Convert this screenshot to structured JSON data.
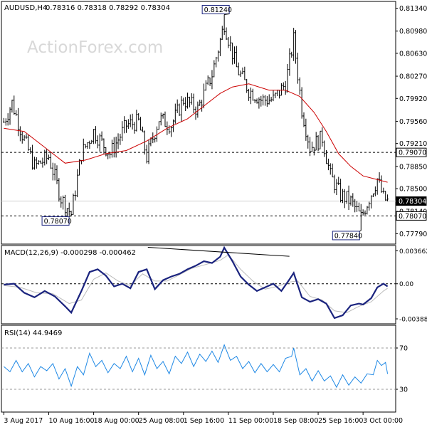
{
  "chart_data": [
    {
      "type": "candlestick",
      "symbol_header": "AUDUSD,H4",
      "ohlc_header": "0.78316 0.78318 0.78292 0.78304",
      "watermark": "ActionForex.com",
      "ylim": [
        0.7766,
        0.8138
      ],
      "y_ticks": [
        "0.81340",
        "0.80980",
        "0.80630",
        "0.80270",
        "0.79920",
        "0.79560",
        "0.79210",
        "0.78850",
        "0.78500",
        "0.78140",
        "0.77790"
      ],
      "price_tags": [
        {
          "label": "0.79070",
          "value": 0.7907,
          "style": "box"
        },
        {
          "label": "0.78304",
          "value": 0.78304,
          "style": "filled"
        },
        {
          "label": "0.78070",
          "value": 0.7807,
          "style": "box"
        }
      ],
      "horizontal_levels": [
        0.7907,
        0.7807
      ],
      "annotations": [
        {
          "label": "0.81240",
          "bar": 108,
          "value": 0.8124,
          "anchor": "above"
        },
        {
          "label": "0.78070",
          "bar": 33,
          "value": 0.7807,
          "anchor": "below"
        },
        {
          "label": "0.77840",
          "bar": 175,
          "value": 0.7784,
          "anchor": "below"
        }
      ],
      "x_labels": [
        {
          "label": "3 Aug 2017",
          "bar": 0
        },
        {
          "label": "10 Aug 16:00",
          "bar": 22
        },
        {
          "label": "18 Aug 00:00",
          "bar": 44
        },
        {
          "label": "25 Aug 08:00",
          "bar": 66
        },
        {
          "label": "1 Sep 16:00",
          "bar": 88
        },
        {
          "label": "11 Sep 00:00",
          "bar": 110
        },
        {
          "label": "18 Sep 08:00",
          "bar": 132
        },
        {
          "label": "25 Sep 16:00",
          "bar": 154
        },
        {
          "label": "3 Oct 00:00",
          "bar": 176
        }
      ],
      "key_points": [
        {
          "bar": 0,
          "value": 0.7955
        },
        {
          "bar": 4,
          "value": 0.7985
        },
        {
          "bar": 9,
          "value": 0.7935
        },
        {
          "bar": 15,
          "value": 0.7885
        },
        {
          "bar": 22,
          "value": 0.79
        },
        {
          "bar": 28,
          "value": 0.7835
        },
        {
          "bar": 33,
          "value": 0.781
        },
        {
          "bar": 38,
          "value": 0.7905
        },
        {
          "bar": 44,
          "value": 0.794
        },
        {
          "bar": 52,
          "value": 0.7905
        },
        {
          "bar": 60,
          "value": 0.795
        },
        {
          "bar": 66,
          "value": 0.7955
        },
        {
          "bar": 70,
          "value": 0.79
        },
        {
          "bar": 76,
          "value": 0.796
        },
        {
          "bar": 82,
          "value": 0.795
        },
        {
          "bar": 88,
          "value": 0.799
        },
        {
          "bar": 95,
          "value": 0.7975
        },
        {
          "bar": 102,
          "value": 0.803
        },
        {
          "bar": 108,
          "value": 0.811
        },
        {
          "bar": 114,
          "value": 0.804
        },
        {
          "bar": 120,
          "value": 0.8005
        },
        {
          "bar": 126,
          "value": 0.799
        },
        {
          "bar": 132,
          "value": 0.799
        },
        {
          "bar": 138,
          "value": 0.8015
        },
        {
          "bar": 142,
          "value": 0.8085
        },
        {
          "bar": 146,
          "value": 0.7975
        },
        {
          "bar": 150,
          "value": 0.7915
        },
        {
          "bar": 156,
          "value": 0.793
        },
        {
          "bar": 160,
          "value": 0.787
        },
        {
          "bar": 165,
          "value": 0.784
        },
        {
          "bar": 170,
          "value": 0.783
        },
        {
          "bar": 175,
          "value": 0.7805
        },
        {
          "bar": 179,
          "value": 0.7835
        },
        {
          "bar": 183,
          "value": 0.7865
        },
        {
          "bar": 186,
          "value": 0.7835
        },
        {
          "bar": 188,
          "value": 0.783
        }
      ],
      "sma_points": [
        {
          "bar": 0,
          "value": 0.7945
        },
        {
          "bar": 10,
          "value": 0.794
        },
        {
          "bar": 20,
          "value": 0.7915
        },
        {
          "bar": 30,
          "value": 0.789
        },
        {
          "bar": 40,
          "value": 0.7895
        },
        {
          "bar": 50,
          "value": 0.7905
        },
        {
          "bar": 60,
          "value": 0.791
        },
        {
          "bar": 70,
          "value": 0.7925
        },
        {
          "bar": 80,
          "value": 0.7945
        },
        {
          "bar": 90,
          "value": 0.796
        },
        {
          "bar": 100,
          "value": 0.7985
        },
        {
          "bar": 106,
          "value": 0.8
        },
        {
          "bar": 112,
          "value": 0.801
        },
        {
          "bar": 120,
          "value": 0.8015
        },
        {
          "bar": 130,
          "value": 0.8005
        },
        {
          "bar": 138,
          "value": 0.8005
        },
        {
          "bar": 145,
          "value": 0.7995
        },
        {
          "bar": 152,
          "value": 0.797
        },
        {
          "bar": 158,
          "value": 0.794
        },
        {
          "bar": 164,
          "value": 0.7905
        },
        {
          "bar": 170,
          "value": 0.7885
        },
        {
          "bar": 176,
          "value": 0.787
        },
        {
          "bar": 182,
          "value": 0.7865
        },
        {
          "bar": 188,
          "value": 0.786
        }
      ],
      "colors": {
        "bar": "#000000",
        "sma": "#cc0000",
        "level": "#000000",
        "annotation_bg": "#ffffff",
        "watermark": "#d8d8d8"
      }
    },
    {
      "type": "line",
      "label": "MACD(12,26,9) -0.000298 -0.000462",
      "ylim": [
        -0.0042,
        0.004
      ],
      "y_ticks": [
        "0.003662",
        "0.00",
        "-0.003887"
      ],
      "y_tick_values": [
        0.003662,
        0.0,
        -0.003887
      ],
      "zero_line": true,
      "series": [
        {
          "role": "macd",
          "color": "#1a237e",
          "points": [
            [
              0,
              -0.0001
            ],
            [
              5,
              0.0
            ],
            [
              10,
              -0.001
            ],
            [
              15,
              -0.0015
            ],
            [
              20,
              -0.0008
            ],
            [
              25,
              -0.0014
            ],
            [
              30,
              -0.0025
            ],
            [
              33,
              -0.0032
            ],
            [
              38,
              -0.0008
            ],
            [
              42,
              0.0013
            ],
            [
              46,
              0.0016
            ],
            [
              50,
              0.0009
            ],
            [
              54,
              -0.0003
            ],
            [
              58,
              0.0
            ],
            [
              62,
              -0.0005
            ],
            [
              66,
              0.0013
            ],
            [
              70,
              0.0016
            ],
            [
              74,
              -0.0006
            ],
            [
              78,
              0.0004
            ],
            [
              82,
              0.0008
            ],
            [
              86,
              0.0011
            ],
            [
              90,
              0.0016
            ],
            [
              94,
              0.002
            ],
            [
              98,
              0.0025
            ],
            [
              102,
              0.0023
            ],
            [
              106,
              0.003
            ],
            [
              108,
              0.004
            ],
            [
              112,
              0.0025
            ],
            [
              116,
              0.0008
            ],
            [
              120,
              -0.0001
            ],
            [
              124,
              -0.0008
            ],
            [
              128,
              -0.0004
            ],
            [
              132,
              0.0
            ],
            [
              136,
              -0.0008
            ],
            [
              140,
              0.0005
            ],
            [
              142,
              0.0012
            ],
            [
              146,
              -0.0015
            ],
            [
              150,
              -0.002
            ],
            [
              154,
              -0.0017
            ],
            [
              158,
              -0.0022
            ],
            [
              162,
              -0.0038
            ],
            [
              166,
              -0.0035
            ],
            [
              170,
              -0.0024
            ],
            [
              174,
              -0.0022
            ],
            [
              176,
              -0.0023
            ],
            [
              180,
              -0.0016
            ],
            [
              183,
              -0.0004
            ],
            [
              186,
              0.0
            ],
            [
              188,
              -0.0003
            ]
          ]
        },
        {
          "role": "signal",
          "color": "#bbbbbb",
          "points": [
            [
              0,
              -0.0002
            ],
            [
              8,
              -0.0004
            ],
            [
              16,
              -0.001
            ],
            [
              24,
              -0.0011
            ],
            [
              32,
              -0.0022
            ],
            [
              38,
              -0.0018
            ],
            [
              44,
              0.0005
            ],
            [
              50,
              0.0012
            ],
            [
              56,
              0.0003
            ],
            [
              62,
              -0.0002
            ],
            [
              68,
              0.0011
            ],
            [
              74,
              0.0003
            ],
            [
              80,
              0.0003
            ],
            [
              86,
              0.001
            ],
            [
              92,
              0.0017
            ],
            [
              100,
              0.0022
            ],
            [
              106,
              0.0026
            ],
            [
              110,
              0.0032
            ],
            [
              116,
              0.0016
            ],
            [
              122,
              0.0003
            ],
            [
              128,
              -0.0006
            ],
            [
              134,
              -0.0003
            ],
            [
              140,
              0.0002
            ],
            [
              144,
              0.0003
            ],
            [
              150,
              -0.0014
            ],
            [
              156,
              -0.0018
            ],
            [
              162,
              -0.003
            ],
            [
              168,
              -0.0032
            ],
            [
              174,
              -0.0025
            ],
            [
              180,
              -0.002
            ],
            [
              186,
              -0.0008
            ],
            [
              188,
              -0.0005
            ]
          ]
        }
      ],
      "divergence_line": [
        [
          88,
          0.004
        ],
        [
          142,
          0.0032
        ]
      ]
    },
    {
      "type": "line",
      "label": "RSI(14) 44.9469",
      "ylim": [
        10,
        90
      ],
      "y_ticks": [
        "70",
        "30"
      ],
      "y_tick_values": [
        70,
        30
      ],
      "levels": [
        70,
        30
      ],
      "series": [
        {
          "role": "rsi",
          "color": "#1e88e5",
          "points": [
            [
              0,
              52
            ],
            [
              3,
              47
            ],
            [
              6,
              58
            ],
            [
              9,
              47
            ],
            [
              12,
              55
            ],
            [
              15,
              42
            ],
            [
              18,
              52
            ],
            [
              21,
              48
            ],
            [
              24,
              55
            ],
            [
              27,
              40
            ],
            [
              30,
              50
            ],
            [
              33,
              33
            ],
            [
              36,
              52
            ],
            [
              39,
              44
            ],
            [
              42,
              65
            ],
            [
              45,
              52
            ],
            [
              48,
              58
            ],
            [
              51,
              46
            ],
            [
              54,
              55
            ],
            [
              57,
              50
            ],
            [
              60,
              62
            ],
            [
              63,
              47
            ],
            [
              66,
              60
            ],
            [
              69,
              44
            ],
            [
              72,
              63
            ],
            [
              75,
              50
            ],
            [
              78,
              57
            ],
            [
              81,
              45
            ],
            [
              84,
              62
            ],
            [
              87,
              55
            ],
            [
              90,
              66
            ],
            [
              93,
              52
            ],
            [
              96,
              64
            ],
            [
              99,
              57
            ],
            [
              102,
              67
            ],
            [
              105,
              56
            ],
            [
              108,
              73
            ],
            [
              111,
              58
            ],
            [
              114,
              62
            ],
            [
              117,
              50
            ],
            [
              120,
              57
            ],
            [
              123,
              46
            ],
            [
              126,
              55
            ],
            [
              129,
              47
            ],
            [
              132,
              54
            ],
            [
              135,
              47
            ],
            [
              138,
              60
            ],
            [
              141,
              62
            ],
            [
              142,
              70
            ],
            [
              145,
              44
            ],
            [
              148,
              50
            ],
            [
              151,
              38
            ],
            [
              154,
              48
            ],
            [
              157,
              38
            ],
            [
              160,
              43
            ],
            [
              163,
              32
            ],
            [
              166,
              44
            ],
            [
              169,
              34
            ],
            [
              172,
              42
            ],
            [
              175,
              36
            ],
            [
              178,
              45
            ],
            [
              181,
              44
            ],
            [
              183,
              58
            ],
            [
              185,
              53
            ],
            [
              187,
              56
            ],
            [
              188,
              45
            ]
          ]
        }
      ]
    }
  ]
}
